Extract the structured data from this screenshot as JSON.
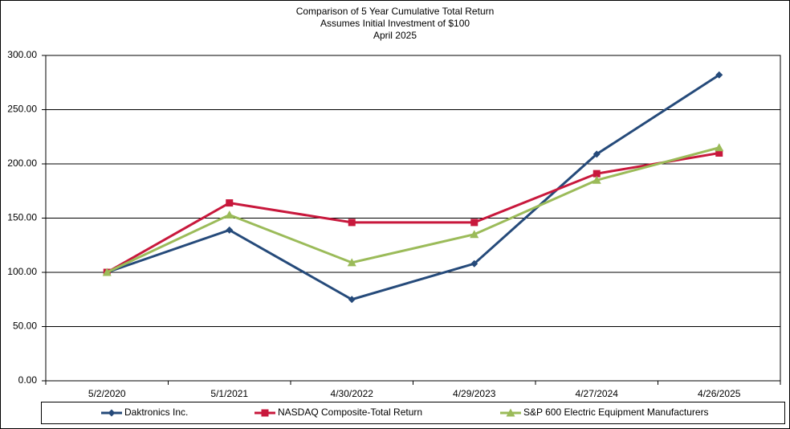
{
  "chart_data": {
    "type": "line",
    "title": "Comparison of 5 Year Cumulative Total Return",
    "subtitle": "Assumes Initial Investment of $100",
    "subtitle2": "April 2025",
    "categories": [
      "5/2/2020",
      "5/1/2021",
      "4/30/2022",
      "4/29/2023",
      "4/27/2024",
      "4/26/2025"
    ],
    "series": [
      {
        "name": "Daktronics Inc.",
        "color": "#254a7a",
        "marker": "diamond",
        "values": [
          100,
          139,
          75,
          108,
          209,
          282
        ]
      },
      {
        "name": "NASDAQ Composite-Total Return",
        "color": "#c8183c",
        "marker": "square",
        "values": [
          100,
          164,
          146,
          146,
          191,
          210
        ]
      },
      {
        "name": "S&P 600 Electric Equipment Manufacturers",
        "color": "#9bbb59",
        "marker": "triangle",
        "values": [
          100,
          153,
          109,
          135,
          185,
          215
        ]
      }
    ],
    "ylim": [
      0,
      300
    ],
    "yticks": [
      {
        "value": 0,
        "label": "0.00"
      },
      {
        "value": 50,
        "label": "50.00"
      },
      {
        "value": 100,
        "label": "100.00"
      },
      {
        "value": 150,
        "label": "150.00"
      },
      {
        "value": 200,
        "label": "200.00"
      },
      {
        "value": 250,
        "label": "250.00"
      },
      {
        "value": 300,
        "label": "300.00"
      }
    ],
    "grid": true,
    "legend": "bottom"
  }
}
